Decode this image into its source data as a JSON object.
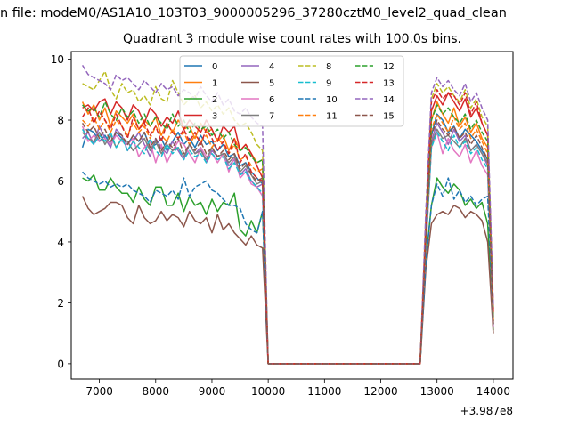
{
  "figure": {
    "suptitle": "n file: modeM0/AS1A10_103T03_9000005296_37280cztM0_level2_quad_clean"
  },
  "chart_data": {
    "type": "line",
    "title": "Quadrant 3 module wise count rates with 100.0s bins.",
    "xlabel": "",
    "ylabel": "",
    "x_offset_label": "+3.987e8",
    "xlim": [
      6500,
      14350
    ],
    "ylim": [
      -0.5,
      10.25
    ],
    "xticks": [
      7000,
      8000,
      9000,
      10000,
      11000,
      12000,
      13000,
      14000
    ],
    "yticks": [
      0,
      2,
      4,
      6,
      8,
      10
    ],
    "grid": false,
    "legend": {
      "placement": "top-center",
      "columns": 4
    },
    "x": [
      6700,
      6800,
      6900,
      7000,
      7100,
      7200,
      7300,
      7400,
      7500,
      7600,
      7700,
      7800,
      7900,
      8000,
      8100,
      8200,
      8300,
      8400,
      8500,
      8600,
      8700,
      8800,
      8900,
      9000,
      9100,
      9200,
      9300,
      9400,
      9500,
      9600,
      9700,
      9800,
      9900,
      10000,
      10100,
      12700,
      12800,
      12900,
      13000,
      13100,
      13200,
      13300,
      13400,
      13500,
      13600,
      13700,
      13800,
      13900,
      14000
    ],
    "series": [
      {
        "name": "0",
        "color": "#1f77b4",
        "dash": "solid",
        "values": [
          7.1,
          7.7,
          7.6,
          7.3,
          7.5,
          7.2,
          7.6,
          7.4,
          7.2,
          7.5,
          7.3,
          7.6,
          7.1,
          7.2,
          7.4,
          7.0,
          7.3,
          7.6,
          7.2,
          7.4,
          7.1,
          7.5,
          7.2,
          7.3,
          7.0,
          7.2,
          6.8,
          6.9,
          6.5,
          6.6,
          6.3,
          6.1,
          5.9,
          0.0,
          0.0,
          0.0,
          3.8,
          7.5,
          8.2,
          8.0,
          7.6,
          7.8,
          7.4,
          7.7,
          7.5,
          7.3,
          7.0,
          6.7,
          1.2
        ]
      },
      {
        "name": "1",
        "color": "#ff7f0e",
        "dash": "solid",
        "values": [
          8.6,
          8.2,
          8.5,
          8.0,
          8.4,
          7.8,
          8.3,
          8.1,
          7.9,
          8.2,
          7.7,
          8.0,
          7.8,
          8.1,
          7.5,
          7.9,
          7.6,
          8.0,
          7.7,
          7.8,
          7.4,
          7.9,
          7.6,
          7.7,
          7.3,
          7.5,
          7.0,
          7.4,
          7.0,
          7.2,
          6.9,
          6.6,
          6.7,
          0.0,
          0.0,
          0.0,
          4.2,
          8.0,
          8.6,
          8.2,
          7.9,
          8.4,
          7.8,
          8.1,
          7.6,
          7.9,
          7.4,
          7.1,
          1.4
        ]
      },
      {
        "name": "2",
        "color": "#2ca02c",
        "dash": "solid",
        "values": [
          6.1,
          6.0,
          6.2,
          5.7,
          5.7,
          6.1,
          5.8,
          5.6,
          5.6,
          5.3,
          5.8,
          5.4,
          5.2,
          5.8,
          5.8,
          5.2,
          5.2,
          5.6,
          5.0,
          5.5,
          5.2,
          5.3,
          4.9,
          5.4,
          5.0,
          5.3,
          5.2,
          5.6,
          4.4,
          4.2,
          4.7,
          4.3,
          5.0,
          0.0,
          0.0,
          0.0,
          3.4,
          5.2,
          6.1,
          5.8,
          5.6,
          5.9,
          5.7,
          5.2,
          5.4,
          5.1,
          5.3,
          4.6,
          1.1
        ]
      },
      {
        "name": "3",
        "color": "#d62728",
        "dash": "solid",
        "values": [
          8.4,
          8.5,
          8.3,
          8.6,
          8.7,
          8.2,
          8.6,
          8.4,
          8.0,
          8.5,
          8.3,
          7.9,
          8.4,
          8.2,
          7.8,
          8.1,
          7.9,
          8.3,
          7.7,
          8.0,
          7.8,
          7.6,
          8.0,
          7.7,
          7.3,
          7.8,
          7.6,
          7.8,
          7.0,
          7.2,
          6.9,
          6.5,
          6.1,
          0.0,
          0.0,
          0.0,
          4.4,
          8.3,
          8.8,
          8.5,
          8.9,
          8.6,
          8.3,
          8.7,
          8.1,
          8.4,
          7.9,
          7.5,
          1.8
        ]
      },
      {
        "name": "4",
        "color": "#9467bd",
        "dash": "solid",
        "values": [
          7.4,
          7.6,
          7.2,
          7.8,
          7.4,
          7.1,
          7.7,
          7.5,
          7.0,
          7.3,
          7.6,
          7.2,
          6.8,
          7.4,
          7.1,
          6.9,
          7.3,
          7.0,
          6.7,
          7.2,
          6.9,
          7.1,
          6.6,
          7.0,
          6.8,
          6.9,
          6.5,
          6.7,
          6.2,
          6.4,
          6.0,
          5.8,
          5.9,
          0.0,
          0.0,
          0.0,
          4.0,
          7.3,
          7.9,
          7.6,
          7.2,
          7.7,
          7.3,
          7.5,
          7.0,
          7.2,
          6.9,
          6.5,
          1.3
        ]
      },
      {
        "name": "5",
        "color": "#8c564b",
        "dash": "solid",
        "values": [
          5.5,
          5.1,
          4.9,
          5.0,
          5.1,
          5.3,
          5.3,
          5.2,
          4.8,
          4.6,
          5.2,
          4.8,
          4.6,
          4.7,
          5.0,
          4.7,
          4.9,
          4.8,
          4.5,
          5.0,
          4.7,
          4.6,
          4.8,
          4.3,
          4.9,
          4.4,
          4.6,
          4.3,
          4.1,
          3.9,
          4.2,
          3.9,
          3.8,
          0.0,
          0.0,
          0.0,
          3.1,
          4.6,
          4.9,
          5.0,
          4.9,
          5.2,
          5.1,
          4.8,
          5.0,
          4.9,
          4.7,
          4.0,
          1.0
        ]
      },
      {
        "name": "6",
        "color": "#e377c2",
        "dash": "solid",
        "values": [
          7.8,
          7.3,
          7.5,
          7.3,
          7.4,
          7.2,
          7.5,
          7.3,
          7.2,
          7.4,
          6.8,
          7.1,
          7.3,
          6.6,
          7.2,
          6.6,
          7.0,
          7.3,
          7.2,
          6.9,
          6.6,
          7.1,
          6.8,
          6.9,
          6.6,
          6.9,
          6.3,
          6.8,
          6.1,
          6.3,
          5.9,
          5.8,
          5.5,
          0.0,
          0.0,
          0.0,
          3.7,
          7.1,
          7.6,
          6.9,
          7.4,
          7.0,
          6.8,
          7.2,
          6.6,
          7.0,
          6.5,
          6.2,
          1.2
        ]
      },
      {
        "name": "7",
        "color": "#7f7f7f",
        "dash": "solid",
        "values": [
          7.6,
          7.4,
          7.3,
          7.6,
          7.2,
          7.5,
          7.1,
          7.4,
          7.3,
          7.0,
          7.2,
          7.4,
          7.0,
          7.3,
          6.9,
          7.2,
          7.0,
          7.1,
          6.8,
          7.2,
          6.9,
          7.0,
          6.7,
          7.1,
          6.8,
          6.9,
          6.6,
          6.8,
          6.3,
          6.5,
          6.2,
          5.9,
          6.0,
          0.0,
          0.0,
          0.0,
          3.9,
          7.2,
          7.7,
          7.4,
          7.5,
          7.3,
          7.1,
          7.4,
          7.0,
          7.2,
          6.9,
          6.6,
          1.3
        ]
      },
      {
        "name": "8",
        "color": "#bcbd22",
        "dash": "dashed",
        "values": [
          9.2,
          9.1,
          9.0,
          9.3,
          9.6,
          9.0,
          8.7,
          9.2,
          8.9,
          9.0,
          8.6,
          8.8,
          8.5,
          9.1,
          8.7,
          8.6,
          9.3,
          8.9,
          8.5,
          8.7,
          8.8,
          8.4,
          8.6,
          8.3,
          8.5,
          8.2,
          8.4,
          8.0,
          7.8,
          7.9,
          7.6,
          7.2,
          7.0,
          0.0,
          0.0,
          0.0,
          4.8,
          8.7,
          9.2,
          8.9,
          9.1,
          8.8,
          8.6,
          9.0,
          8.4,
          8.7,
          8.1,
          7.8,
          1.6
        ]
      },
      {
        "name": "9",
        "color": "#17becf",
        "dash": "dashed",
        "values": [
          7.7,
          7.4,
          7.2,
          7.5,
          7.3,
          7.6,
          7.1,
          7.4,
          7.0,
          7.3,
          7.1,
          6.9,
          7.4,
          7.0,
          6.8,
          7.2,
          6.9,
          7.1,
          6.7,
          7.0,
          6.8,
          6.9,
          6.6,
          6.9,
          6.7,
          6.8,
          6.4,
          6.6,
          6.2,
          6.3,
          6.0,
          5.8,
          5.6,
          0.0,
          0.0,
          0.0,
          3.8,
          7.1,
          7.6,
          7.3,
          7.0,
          7.5,
          7.1,
          7.3,
          6.9,
          7.1,
          6.7,
          6.4,
          1.3
        ]
      },
      {
        "name": "10",
        "color": "#1f77b4",
        "dash": "dashed",
        "values": [
          6.3,
          6.1,
          6.0,
          5.9,
          6.0,
          5.8,
          5.9,
          5.8,
          5.9,
          5.7,
          5.6,
          5.5,
          5.3,
          5.7,
          5.6,
          5.5,
          5.7,
          5.4,
          6.1,
          5.5,
          5.8,
          5.9,
          6.0,
          5.7,
          5.6,
          5.4,
          5.2,
          5.2,
          5.1,
          4.6,
          4.4,
          4.3,
          5.0,
          0.0,
          0.0,
          0.0,
          3.3,
          5.2,
          5.9,
          5.5,
          6.1,
          5.4,
          5.7,
          5.3,
          5.5,
          5.2,
          5.4,
          5.5,
          1.4
        ]
      },
      {
        "name": "11",
        "color": "#ff7f0e",
        "dash": "dashed",
        "values": [
          8.0,
          7.8,
          8.1,
          7.7,
          8.0,
          7.6,
          8.0,
          7.8,
          7.5,
          7.9,
          7.6,
          7.8,
          7.4,
          7.8,
          7.5,
          7.3,
          7.7,
          7.4,
          7.6,
          7.2,
          7.5,
          7.3,
          7.5,
          7.1,
          7.4,
          7.2,
          6.9,
          7.2,
          6.7,
          6.8,
          6.5,
          6.3,
          6.4,
          0.0,
          0.0,
          0.0,
          4.1,
          7.7,
          8.2,
          7.9,
          7.6,
          8.1,
          7.7,
          7.9,
          7.4,
          7.7,
          7.3,
          6.9,
          1.4
        ]
      },
      {
        "name": "12",
        "color": "#2ca02c",
        "dash": "dashed",
        "values": [
          8.5,
          8.3,
          8.4,
          8.1,
          8.6,
          8.2,
          8.0,
          8.4,
          8.1,
          8.3,
          7.9,
          8.2,
          7.8,
          8.1,
          7.9,
          7.7,
          8.2,
          7.8,
          8.0,
          7.6,
          7.9,
          7.7,
          7.8,
          7.5,
          7.7,
          7.4,
          7.6,
          7.2,
          7.0,
          7.1,
          6.8,
          6.6,
          6.7,
          0.0,
          0.0,
          0.0,
          4.3,
          8.0,
          8.5,
          8.2,
          8.4,
          8.1,
          7.9,
          8.2,
          7.7,
          8.0,
          7.6,
          7.3,
          1.5
        ]
      },
      {
        "name": "13",
        "color": "#d62728",
        "dash": "dashed",
        "values": [
          8.1,
          8.4,
          7.9,
          8.3,
          8.0,
          7.7,
          8.2,
          7.8,
          7.4,
          8.1,
          7.7,
          7.9,
          7.5,
          7.8,
          7.3,
          7.9,
          7.6,
          7.4,
          7.7,
          7.3,
          7.6,
          7.2,
          7.7,
          7.4,
          7.0,
          7.3,
          6.9,
          7.4,
          6.6,
          6.9,
          6.3,
          6.1,
          6.0,
          0.0,
          0.0,
          0.0,
          4.5,
          8.6,
          9.0,
          8.7,
          8.9,
          8.8,
          8.5,
          8.9,
          8.2,
          8.6,
          7.9,
          7.5,
          1.7
        ]
      },
      {
        "name": "14",
        "color": "#9467bd",
        "dash": "dashed",
        "values": [
          9.8,
          9.5,
          9.4,
          9.3,
          9.2,
          9.0,
          9.5,
          9.3,
          9.4,
          9.2,
          9.0,
          9.3,
          9.1,
          8.9,
          9.2,
          9.0,
          9.1,
          8.8,
          9.0,
          8.9,
          8.7,
          9.1,
          8.8,
          8.6,
          8.9,
          8.5,
          8.7,
          8.3,
          8.2,
          8.4,
          8.1,
          7.9,
          7.8,
          0.0,
          0.0,
          0.0,
          5.0,
          8.9,
          9.4,
          9.1,
          9.3,
          9.0,
          8.8,
          9.2,
          8.6,
          8.9,
          8.4,
          8.0,
          1.9
        ]
      },
      {
        "name": "15",
        "color": "#8c564b",
        "dash": "dashed",
        "values": [
          7.9,
          7.6,
          7.8,
          7.4,
          7.7,
          7.3,
          7.6,
          7.5,
          7.2,
          7.5,
          7.3,
          7.6,
          7.1,
          7.4,
          7.0,
          7.3,
          7.1,
          7.4,
          6.9,
          7.2,
          7.0,
          7.3,
          6.9,
          7.1,
          6.8,
          7.0,
          6.7,
          6.9,
          6.4,
          6.6,
          6.2,
          6.0,
          6.1,
          0.0,
          0.0,
          0.0,
          4.0,
          7.5,
          8.0,
          7.7,
          7.5,
          7.8,
          7.4,
          7.6,
          7.2,
          7.5,
          7.1,
          6.7,
          1.3
        ]
      }
    ]
  }
}
